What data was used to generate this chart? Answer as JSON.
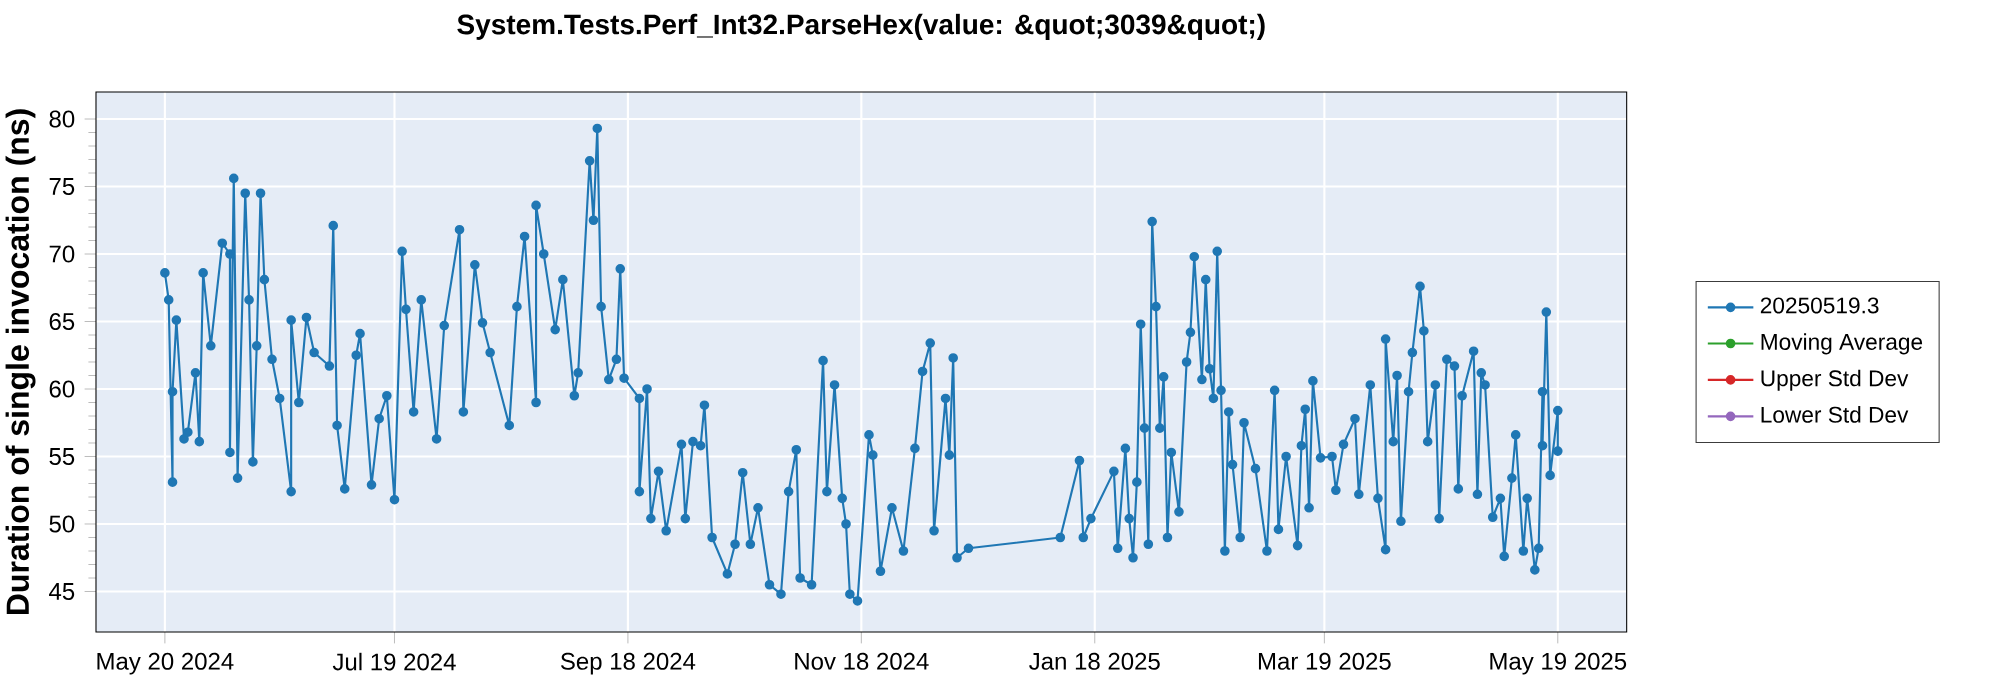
{
  "chart_data": {
    "type": "line",
    "title": "System.Tests.Perf_Int32.ParseHex(value: &quot;3039&quot;)",
    "ylabel": "Duration of single invocation (ns)",
    "x": [
      "2024-05-20",
      "2024-05-21",
      "2024-05-22",
      "2024-05-22",
      "2024-05-23",
      "2024-05-25",
      "2024-05-26",
      "2024-05-28",
      "2024-05-29",
      "2024-05-30",
      "2024-06-01",
      "2024-06-04",
      "2024-06-06",
      "2024-06-06",
      "2024-06-07",
      "2024-06-08",
      "2024-06-10",
      "2024-06-11",
      "2024-06-12",
      "2024-06-13",
      "2024-06-14",
      "2024-06-15",
      "2024-06-17",
      "2024-06-19",
      "2024-06-22",
      "2024-06-22",
      "2024-06-24",
      "2024-06-26",
      "2024-06-28",
      "2024-07-02",
      "2024-07-03",
      "2024-07-04",
      "2024-07-06",
      "2024-07-09",
      "2024-07-10",
      "2024-07-13",
      "2024-07-15",
      "2024-07-17",
      "2024-07-19",
      "2024-07-21",
      "2024-07-22",
      "2024-07-24",
      "2024-07-26",
      "2024-07-30",
      "2024-08-01",
      "2024-08-05",
      "2024-08-06",
      "2024-08-09",
      "2024-08-11",
      "2024-08-13",
      "2024-08-18",
      "2024-08-20",
      "2024-08-22",
      "2024-08-25",
      "2024-08-25",
      "2024-08-27",
      "2024-08-30",
      "2024-09-01",
      "2024-09-04",
      "2024-09-05",
      "2024-09-08",
      "2024-09-09",
      "2024-09-10",
      "2024-09-11",
      "2024-09-13",
      "2024-09-15",
      "2024-09-16",
      "2024-09-17",
      "2024-09-21",
      "2024-09-21",
      "2024-09-23",
      "2024-09-24",
      "2024-09-26",
      "2024-09-28",
      "2024-10-02",
      "2024-10-03",
      "2024-10-05",
      "2024-10-07",
      "2024-10-08",
      "2024-10-10",
      "2024-10-14",
      "2024-10-16",
      "2024-10-18",
      "2024-10-20",
      "2024-10-22",
      "2024-10-25",
      "2024-10-28",
      "2024-10-30",
      "2024-11-01",
      "2024-11-02",
      "2024-11-05",
      "2024-11-08",
      "2024-11-09",
      "2024-11-11",
      "2024-11-13",
      "2024-11-14",
      "2024-11-15",
      "2024-11-17",
      "2024-11-20",
      "2024-11-21",
      "2024-11-23",
      "2024-11-26",
      "2024-11-29",
      "2024-12-02",
      "2024-12-04",
      "2024-12-06",
      "2024-12-07",
      "2024-12-10",
      "2024-12-11",
      "2024-12-12",
      "2024-12-13",
      "2024-12-16",
      "2025-01-09",
      "2025-01-14",
      "2025-01-15",
      "2025-01-17",
      "2025-01-23",
      "2025-01-24",
      "2025-01-26",
      "2025-01-27",
      "2025-01-28",
      "2025-01-29",
      "2025-01-30",
      "2025-01-31",
      "2025-02-01",
      "2025-02-02",
      "2025-02-03",
      "2025-02-04",
      "2025-02-05",
      "2025-02-06",
      "2025-02-07",
      "2025-02-09",
      "2025-02-11",
      "2025-02-12",
      "2025-02-13",
      "2025-02-15",
      "2025-02-16",
      "2025-02-17",
      "2025-02-18",
      "2025-02-19",
      "2025-02-20",
      "2025-02-21",
      "2025-02-22",
      "2025-02-23",
      "2025-02-25",
      "2025-02-26",
      "2025-03-01",
      "2025-03-04",
      "2025-03-06",
      "2025-03-07",
      "2025-03-09",
      "2025-03-12",
      "2025-03-13",
      "2025-03-14",
      "2025-03-15",
      "2025-03-16",
      "2025-03-18",
      "2025-03-21",
      "2025-03-22",
      "2025-03-24",
      "2025-03-27",
      "2025-03-28",
      "2025-03-31",
      "2025-04-02",
      "2025-04-04",
      "2025-04-04",
      "2025-04-06",
      "2025-04-07",
      "2025-04-08",
      "2025-04-10",
      "2025-04-11",
      "2025-04-13",
      "2025-04-14",
      "2025-04-15",
      "2025-04-17",
      "2025-04-18",
      "2025-04-20",
      "2025-04-22",
      "2025-04-23",
      "2025-04-24",
      "2025-04-27",
      "2025-04-28",
      "2025-04-29",
      "2025-04-30",
      "2025-05-02",
      "2025-05-04",
      "2025-05-05",
      "2025-05-07",
      "2025-05-08",
      "2025-05-10",
      "2025-05-11",
      "2025-05-13",
      "2025-05-14",
      "2025-05-15",
      "2025-05-15",
      "2025-05-16",
      "2025-05-17",
      "2025-05-19",
      "2025-05-19"
    ],
    "series": [
      {
        "name": "20250519.3",
        "color": "#1f77b4",
        "values": [
          68.6,
          66.6,
          53.1,
          59.8,
          65.1,
          56.3,
          56.8,
          61.2,
          56.1,
          68.6,
          63.2,
          70.8,
          70.0,
          55.3,
          75.6,
          53.4,
          74.5,
          66.6,
          54.6,
          63.2,
          74.5,
          68.1,
          62.2,
          59.3,
          52.4,
          65.1,
          59.0,
          65.3,
          62.7,
          61.7,
          72.1,
          57.3,
          52.6,
          62.5,
          64.1,
          52.9,
          57.8,
          59.5,
          51.8,
          70.2,
          65.9,
          58.3,
          66.6,
          56.3,
          64.7,
          71.8,
          58.3,
          69.2,
          64.9,
          62.7,
          57.3,
          66.1,
          71.3,
          59.0,
          73.6,
          70.0,
          64.4,
          68.1,
          59.5,
          61.2,
          76.9,
          72.5,
          79.3,
          66.1,
          60.7,
          62.2,
          68.9,
          60.8,
          59.3,
          52.4,
          60.0,
          50.4,
          53.9,
          49.5,
          55.9,
          50.4,
          56.1,
          55.8,
          58.8,
          49.0,
          46.3,
          48.5,
          53.8,
          48.5,
          51.2,
          45.5,
          44.8,
          52.4,
          55.5,
          46.0,
          45.5,
          62.1,
          52.4,
          60.3,
          51.9,
          50.0,
          44.8,
          44.3,
          56.6,
          55.1,
          46.5,
          51.2,
          48.0,
          55.6,
          61.3,
          63.4,
          49.5,
          59.3,
          55.1,
          62.3,
          47.5,
          48.2,
          49.0,
          54.7,
          49.0,
          50.4,
          53.9,
          48.2,
          55.6,
          50.4,
          47.5,
          53.1,
          64.8,
          57.1,
          48.5,
          72.4,
          66.1,
          57.1,
          60.9,
          49.0,
          55.3,
          50.9,
          62.0,
          64.2,
          69.8,
          60.7,
          68.1,
          61.5,
          59.3,
          70.2,
          59.9,
          48.0,
          58.3,
          54.4,
          49.0,
          57.5,
          54.1,
          48.0,
          59.9,
          49.6,
          55.0,
          48.4,
          55.8,
          58.5,
          51.2,
          60.6,
          54.9,
          55.0,
          52.5,
          55.9,
          57.8,
          52.2,
          60.3,
          51.9,
          48.1,
          63.7,
          56.1,
          61.0,
          50.2,
          59.8,
          62.7,
          67.6,
          64.3,
          56.1,
          60.3,
          50.4,
          62.2,
          61.7,
          52.6,
          59.5,
          62.8,
          52.2,
          61.2,
          60.3,
          50.5,
          51.9,
          47.6,
          53.4,
          56.6,
          48.0,
          51.9,
          46.6,
          48.2,
          59.8,
          55.8,
          65.7,
          53.6,
          58.4,
          55.4
        ]
      },
      {
        "name": "Moving Average",
        "color": "#2ca02c",
        "values": [
          null,
          null,
          null,
          null,
          null,
          null,
          null,
          null,
          null,
          null,
          null,
          null,
          null,
          null,
          null,
          null,
          null,
          null,
          null,
          null,
          null,
          null,
          null,
          null,
          null,
          null,
          null,
          null,
          null,
          null,
          null,
          null,
          null,
          null,
          null,
          null,
          null,
          null,
          null,
          null,
          null,
          null,
          null,
          null,
          null,
          null,
          null,
          null,
          null,
          null,
          null,
          null,
          null,
          null,
          null,
          null,
          null,
          null,
          null,
          null,
          null,
          null,
          null,
          null,
          null,
          null,
          null,
          null,
          null,
          null,
          null,
          null,
          null,
          null,
          null,
          null,
          null,
          null,
          null,
          null,
          null,
          null,
          null,
          null,
          null,
          null,
          null,
          null,
          null,
          null,
          null,
          null,
          null,
          null,
          null,
          null,
          null,
          null,
          null,
          null,
          null,
          null,
          null,
          null,
          null,
          null,
          null,
          null,
          null,
          null,
          null,
          null,
          null,
          null,
          null,
          null,
          null,
          null,
          null,
          null,
          null,
          null,
          null,
          null,
          null,
          null,
          null,
          null,
          null,
          null,
          null,
          null,
          null,
          null,
          null,
          null,
          null,
          null,
          null,
          null,
          null,
          null,
          null,
          null,
          null,
          null,
          null,
          null,
          null,
          null,
          null,
          null,
          null,
          null,
          null,
          null,
          null,
          null,
          null,
          null,
          null,
          null,
          null,
          null,
          null,
          null,
          null,
          null,
          null,
          null,
          null,
          null,
          null,
          null,
          null,
          null,
          null,
          null,
          null,
          null,
          null,
          null,
          null,
          null,
          null,
          null,
          null,
          null,
          null,
          null,
          null,
          null,
          null,
          null,
          null,
          null,
          null,
          null,
          null
        ]
      },
      {
        "name": "Upper Std Dev",
        "color": "#d62728",
        "values": [
          null,
          null,
          null,
          null,
          null,
          null,
          null,
          null,
          null,
          null,
          null,
          null,
          null,
          null,
          null,
          null,
          null,
          null,
          null,
          null,
          null,
          null,
          null,
          null,
          null,
          null,
          null,
          null,
          null,
          null,
          null,
          null,
          null,
          null,
          null,
          null,
          null,
          null,
          null,
          null,
          null,
          null,
          null,
          null,
          null,
          null,
          null,
          null,
          null,
          null,
          null,
          null,
          null,
          null,
          null,
          null,
          null,
          null,
          null,
          null,
          null,
          null,
          null,
          null,
          null,
          null,
          null,
          null,
          null,
          null,
          null,
          null,
          null,
          null,
          null,
          null,
          null,
          null,
          null,
          null,
          null,
          null,
          null,
          null,
          null,
          null,
          null,
          null,
          null,
          null,
          null,
          null,
          null,
          null,
          null,
          null,
          null,
          null,
          null,
          null,
          null,
          null,
          null,
          null,
          null,
          null,
          null,
          null,
          null,
          null,
          null,
          null,
          null,
          null,
          null,
          null,
          null,
          null,
          null,
          null,
          null,
          null,
          null,
          null,
          null,
          null,
          null,
          null,
          null,
          null,
          null,
          null,
          null,
          null,
          null,
          null,
          null,
          null,
          null,
          null,
          null,
          null,
          null,
          null,
          null,
          null,
          null,
          null,
          null,
          null,
          null,
          null,
          null,
          null,
          null,
          null,
          null,
          null,
          null,
          null,
          null,
          null,
          null,
          null,
          null,
          null,
          null,
          null,
          null,
          null,
          null,
          null,
          null,
          null,
          null,
          null,
          null,
          null,
          null,
          null,
          null,
          null,
          null,
          null,
          null,
          null,
          null,
          null,
          null,
          null,
          null,
          null,
          null,
          null,
          null,
          null,
          null,
          null,
          null
        ]
      },
      {
        "name": "Lower Std Dev",
        "color": "#9467bd",
        "values": [
          null,
          null,
          null,
          null,
          null,
          null,
          null,
          null,
          null,
          null,
          null,
          null,
          null,
          null,
          null,
          null,
          null,
          null,
          null,
          null,
          null,
          null,
          null,
          null,
          null,
          null,
          null,
          null,
          null,
          null,
          null,
          null,
          null,
          null,
          null,
          null,
          null,
          null,
          null,
          null,
          null,
          null,
          null,
          null,
          null,
          null,
          null,
          null,
          null,
          null,
          null,
          null,
          null,
          null,
          null,
          null,
          null,
          null,
          null,
          null,
          null,
          null,
          null,
          null,
          null,
          null,
          null,
          null,
          null,
          null,
          null,
          null,
          null,
          null,
          null,
          null,
          null,
          null,
          null,
          null,
          null,
          null,
          null,
          null,
          null,
          null,
          null,
          null,
          null,
          null,
          null,
          null,
          null,
          null,
          null,
          null,
          null,
          null,
          null,
          null,
          null,
          null,
          null,
          null,
          null,
          null,
          null,
          null,
          null,
          null,
          null,
          null,
          null,
          null,
          null,
          null,
          null,
          null,
          null,
          null,
          null,
          null,
          null,
          null,
          null,
          null,
          null,
          null,
          null,
          null,
          null,
          null,
          null,
          null,
          null,
          null,
          null,
          null,
          null,
          null,
          null,
          null,
          null,
          null,
          null,
          null,
          null,
          null,
          null,
          null,
          null,
          null,
          null,
          null,
          null,
          null,
          null,
          null,
          null,
          null,
          null,
          null,
          null,
          null,
          null,
          null,
          null,
          null,
          null,
          null,
          null,
          null,
          null,
          null,
          null,
          null,
          null,
          null,
          null,
          null,
          null,
          null,
          null,
          null,
          null,
          null,
          null,
          null,
          null,
          null,
          null,
          null,
          null,
          null,
          null,
          null,
          null,
          null,
          null
        ]
      }
    ],
    "xlim": [
      "2024-05-02",
      "2025-06-06"
    ],
    "xticks": [
      {
        "value": "2024-05-20",
        "label": "May 20 2024"
      },
      {
        "value": "2024-07-19",
        "label": "Jul 19 2024"
      },
      {
        "value": "2024-09-18",
        "label": "Sep 18 2024"
      },
      {
        "value": "2024-11-18",
        "label": "Nov 18 2024"
      },
      {
        "value": "2025-01-18",
        "label": "Jan 18 2025"
      },
      {
        "value": "2025-03-19",
        "label": "Mar 19 2025"
      },
      {
        "value": "2025-05-19",
        "label": "May 19 2025"
      }
    ],
    "ylim": [
      42,
      82
    ],
    "yticks": [
      45,
      50,
      55,
      60,
      65,
      70,
      75,
      80
    ],
    "grid": true,
    "legend": "right",
    "marker": "circle"
  }
}
